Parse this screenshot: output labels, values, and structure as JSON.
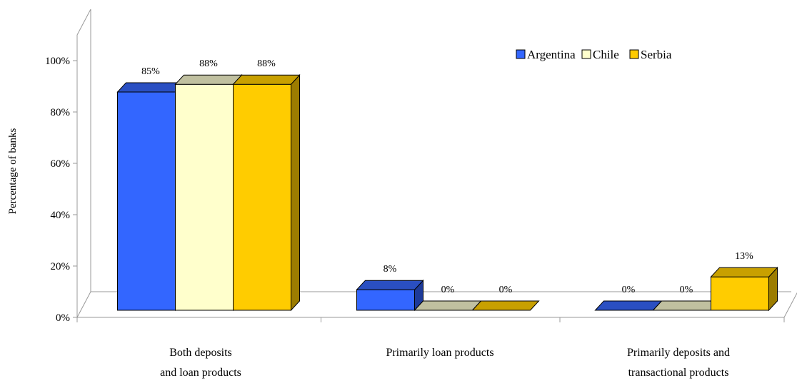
{
  "chart_data": {
    "type": "bar",
    "categories": [
      [
        "Both deposits",
        "and loan products"
      ],
      [
        "Primarily loan products"
      ],
      [
        "Primarily deposits and",
        "transactional products"
      ]
    ],
    "series": [
      {
        "name": "Argentina",
        "values": [
          85,
          8,
          0
        ],
        "labels": [
          "85%",
          "8%",
          "0%"
        ]
      },
      {
        "name": "Chile",
        "values": [
          88,
          0,
          0
        ],
        "labels": [
          "88%",
          "0%",
          "0%"
        ]
      },
      {
        "name": "Serbia",
        "values": [
          88,
          0,
          13
        ],
        "labels": [
          "88%",
          "0%",
          "13%"
        ]
      }
    ],
    "colors": {
      "Argentina": {
        "front": "#3366ff",
        "top": "#2a4fc2",
        "side": "#1d3a99"
      },
      "Chile": {
        "front": "#ffffcc",
        "top": "#c0c0a0",
        "side": "#a8a888"
      },
      "Serbia": {
        "front": "#ffcc00",
        "top": "#c8a000",
        "side": "#9c7c00"
      }
    },
    "ylabel": "Percentage of banks",
    "yticks": [
      "0%",
      "20%",
      "40%",
      "60%",
      "80%",
      "100%"
    ],
    "ylim": [
      0,
      100
    ],
    "grid": false,
    "legend_position": "top-right"
  }
}
